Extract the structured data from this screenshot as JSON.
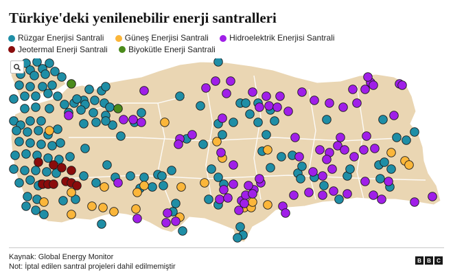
{
  "title": "Türkiye'deki yenilenebilir enerji santralleri",
  "legend": [
    {
      "label": "Rüzgar Enerjisi Santrali",
      "color": "#1f8ea6"
    },
    {
      "label": "Güneş Enerjisi Santrali",
      "color": "#fbb63a"
    },
    {
      "label": "Hidroelektrik Enerjisi Santrali",
      "color": "#a01fe8"
    },
    {
      "label": "Jeotermal Enerji Santrali",
      "color": "#8a0c0c"
    },
    {
      "label": "Biyokütle Enerji Santrali",
      "color": "#4b8b1c"
    }
  ],
  "colors": {
    "land": "#ead6b3",
    "border": "#ffffff",
    "marker_stroke": "#1a1a1a"
  },
  "zoom_icon": "magnifier-icon",
  "footer": {
    "source": "Kaynak: Global Energy Monitor",
    "note": "Not: İptal edilen santral projeleri dahil edilmemiştir",
    "logo": [
      "B",
      "B",
      "C"
    ]
  }
}
